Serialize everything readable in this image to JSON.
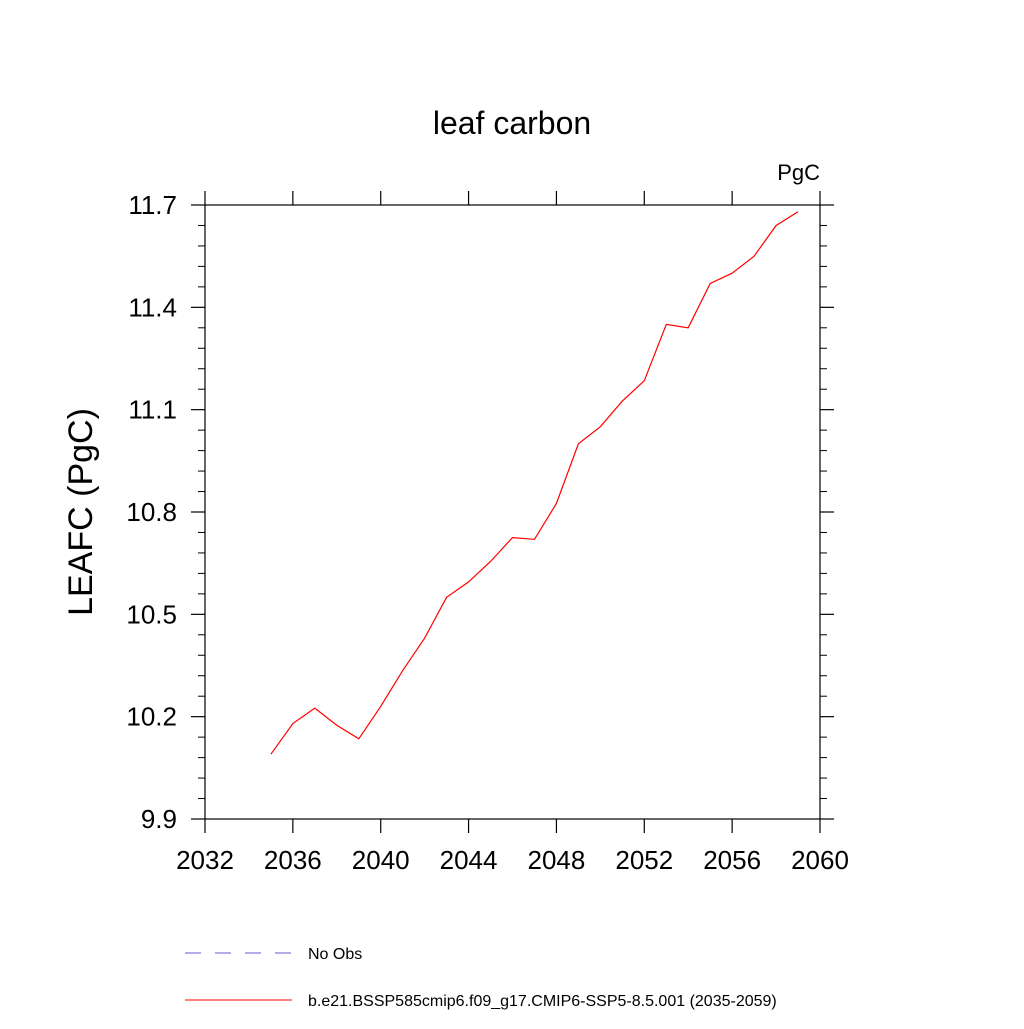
{
  "chart_data": {
    "type": "line",
    "title": "leaf carbon",
    "units_label": "PgC",
    "ylabel": "LEAFC  (PgC)",
    "xlabel": "",
    "xlim": [
      2032,
      2060
    ],
    "ylim": [
      9.9,
      11.7
    ],
    "x_ticks": [
      2032,
      2036,
      2040,
      2044,
      2048,
      2052,
      2056,
      2060
    ],
    "y_ticks": [
      9.9,
      10.2,
      10.5,
      10.8,
      11.1,
      11.4,
      11.7
    ],
    "y_tick_labels": [
      "9.9",
      "10.2",
      "10.5",
      "10.8",
      "11.1",
      "11.4",
      "11.7"
    ],
    "grid": false,
    "legend_position": "bottom",
    "series": [
      {
        "name": "b.e21.BSSP585cmip6.f09_g17.CMIP6-SSP5-8.5.001 (2035-2059)",
        "color": "#ff0000",
        "dash": "solid",
        "x": [
          2035,
          2036,
          2037,
          2038,
          2039,
          2040,
          2041,
          2042,
          2043,
          2044,
          2045,
          2046,
          2047,
          2048,
          2049,
          2050,
          2051,
          2052,
          2053,
          2054,
          2055,
          2056,
          2057,
          2058,
          2059
        ],
        "values": [
          10.09,
          10.18,
          10.225,
          10.175,
          10.135,
          10.23,
          10.335,
          10.43,
          10.55,
          10.595,
          10.655,
          10.725,
          10.72,
          10.825,
          11.0,
          11.05,
          11.125,
          11.185,
          11.35,
          11.34,
          11.47,
          11.5,
          11.55,
          11.64,
          11.68
        ]
      }
    ],
    "legend": [
      {
        "label": "No Obs",
        "color": "#6a5acd",
        "dash": "dashed"
      },
      {
        "label": "b.e21.BSSP585cmip6.f09_g17.CMIP6-SSP5-8.5.001 (2035-2059)",
        "color": "#ff0000",
        "dash": "solid"
      }
    ]
  }
}
